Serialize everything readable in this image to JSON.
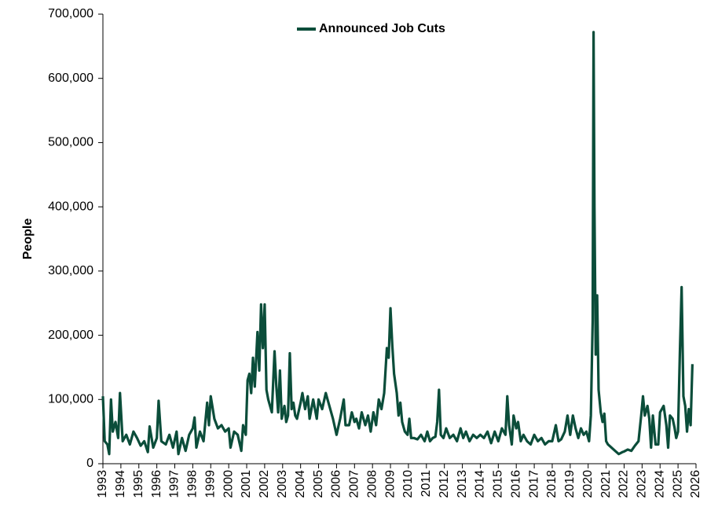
{
  "chart_data": {
    "type": "line",
    "y_label": "People",
    "legend": "top",
    "x": [
      1993.0,
      1993.1,
      1993.25,
      1993.35,
      1993.45,
      1993.55,
      1993.7,
      1993.85,
      1993.95,
      1994.1,
      1994.3,
      1994.5,
      1994.7,
      1994.9,
      1995.1,
      1995.3,
      1995.5,
      1995.6,
      1995.8,
      1996.0,
      1996.1,
      1996.25,
      1996.5,
      1996.7,
      1996.9,
      1997.1,
      1997.2,
      1997.4,
      1997.6,
      1997.8,
      1998.0,
      1998.1,
      1998.2,
      1998.4,
      1998.6,
      1998.8,
      1998.9,
      1999.0,
      1999.2,
      1999.4,
      1999.6,
      1999.8,
      2000.0,
      2000.1,
      2000.3,
      2000.5,
      2000.7,
      2000.8,
      2000.95,
      2001.05,
      2001.15,
      2001.25,
      2001.35,
      2001.45,
      2001.6,
      2001.7,
      2001.8,
      2001.9,
      2002.0,
      2002.1,
      2002.2,
      2002.3,
      2002.4,
      2002.55,
      2002.65,
      2002.75,
      2002.85,
      2002.95,
      2003.1,
      2003.2,
      2003.3,
      2003.4,
      2003.5,
      2003.6,
      2003.7,
      2003.8,
      2004.0,
      2004.1,
      2004.25,
      2004.4,
      2004.5,
      2004.7,
      2004.9,
      2005.0,
      2005.2,
      2005.4,
      2005.6,
      2005.8,
      2006.0,
      2006.2,
      2006.4,
      2006.5,
      2006.7,
      2006.85,
      2007.0,
      2007.1,
      2007.25,
      2007.4,
      2007.6,
      2007.75,
      2007.9,
      2008.05,
      2008.2,
      2008.35,
      2008.5,
      2008.65,
      2008.8,
      2008.9,
      2009.0,
      2009.1,
      2009.2,
      2009.35,
      2009.45,
      2009.55,
      2009.65,
      2009.8,
      2009.95,
      2010.05,
      2010.15,
      2010.3,
      2010.5,
      2010.7,
      2010.9,
      2011.05,
      2011.2,
      2011.35,
      2011.5,
      2011.6,
      2011.7,
      2011.8,
      2011.95,
      2012.1,
      2012.3,
      2012.5,
      2012.7,
      2012.9,
      2013.05,
      2013.2,
      2013.4,
      2013.6,
      2013.8,
      2014.0,
      2014.2,
      2014.4,
      2014.6,
      2014.8,
      2015.0,
      2015.2,
      2015.4,
      2015.5,
      2015.6,
      2015.75,
      2015.85,
      2016.0,
      2016.1,
      2016.25,
      2016.4,
      2016.6,
      2016.8,
      2017.0,
      2017.2,
      2017.4,
      2017.6,
      2017.8,
      2018.0,
      2018.2,
      2018.35,
      2018.5,
      2018.7,
      2018.85,
      2019.0,
      2019.15,
      2019.3,
      2019.45,
      2019.6,
      2019.75,
      2019.9,
      2020.05,
      2020.15,
      2020.25,
      2020.3,
      2020.35,
      2020.42,
      2020.5,
      2020.58,
      2020.7,
      2020.8,
      2020.9,
      2021.0,
      2021.1,
      2021.3,
      2021.5,
      2021.7,
      2021.9,
      2022.0,
      2022.2,
      2022.4,
      2022.6,
      2022.8,
      2022.95,
      2023.05,
      2023.15,
      2023.3,
      2023.4,
      2023.5,
      2023.6,
      2023.75,
      2023.9,
      2024.0,
      2024.1,
      2024.2,
      2024.35,
      2024.45,
      2024.55,
      2024.7,
      2024.8,
      2024.9,
      2025.0,
      2025.1,
      2025.2,
      2025.3,
      2025.4,
      2025.5,
      2025.6,
      2025.7,
      2025.8
    ],
    "series": [
      {
        "name": "Announced Job Cuts",
        "color": "#0b4d3a",
        "values": [
          105000,
          35000,
          30000,
          15000,
          100000,
          50000,
          65000,
          40000,
          110000,
          35000,
          45000,
          30000,
          50000,
          40000,
          28000,
          35000,
          18000,
          58000,
          25000,
          40000,
          98000,
          35000,
          30000,
          45000,
          25000,
          50000,
          15000,
          40000,
          20000,
          45000,
          55000,
          72000,
          25000,
          50000,
          35000,
          95000,
          60000,
          105000,
          70000,
          55000,
          60000,
          50000,
          55000,
          25000,
          50000,
          45000,
          20000,
          60000,
          45000,
          130000,
          140000,
          110000,
          165000,
          120000,
          205000,
          145000,
          248000,
          180000,
          248000,
          115000,
          100000,
          90000,
          80000,
          175000,
          120000,
          80000,
          145000,
          70000,
          90000,
          65000,
          75000,
          172000,
          85000,
          95000,
          75000,
          70000,
          95000,
          110000,
          85000,
          105000,
          70000,
          100000,
          70000,
          100000,
          85000,
          110000,
          90000,
          70000,
          45000,
          70000,
          100000,
          60000,
          60000,
          80000,
          65000,
          70000,
          55000,
          80000,
          60000,
          75000,
          50000,
          80000,
          60000,
          100000,
          85000,
          110000,
          180000,
          165000,
          242000,
          185000,
          140000,
          110000,
          75000,
          95000,
          65000,
          50000,
          45000,
          70000,
          40000,
          40000,
          38000,
          45000,
          35000,
          50000,
          35000,
          40000,
          42000,
          65000,
          115000,
          45000,
          40000,
          55000,
          40000,
          45000,
          35000,
          55000,
          40000,
          50000,
          35000,
          45000,
          40000,
          45000,
          40000,
          50000,
          32000,
          50000,
          35000,
          55000,
          45000,
          105000,
          60000,
          30000,
          75000,
          55000,
          65000,
          35000,
          45000,
          35000,
          30000,
          45000,
          35000,
          40000,
          30000,
          35000,
          35000,
          60000,
          35000,
          38000,
          50000,
          75000,
          45000,
          75000,
          55000,
          40000,
          55000,
          45000,
          50000,
          35000,
          75000,
          222000,
          672000,
          400000,
          170000,
          262000,
          115000,
          80000,
          65000,
          78000,
          35000,
          30000,
          25000,
          20000,
          15000,
          18000,
          19000,
          22000,
          20000,
          28000,
          35000,
          75000,
          105000,
          75000,
          90000,
          70000,
          25000,
          75000,
          30000,
          30000,
          80000,
          85000,
          90000,
          60000,
          25000,
          75000,
          70000,
          57000,
          40000,
          50000,
          170000,
          275000,
          105000,
          90000,
          50000,
          85000,
          60000,
          155000
        ]
      }
    ],
    "xlim": [
      1993,
      2026
    ],
    "xticks": [
      1993,
      1994,
      1995,
      1996,
      1997,
      1998,
      1999,
      2000,
      2001,
      2002,
      2003,
      2004,
      2005,
      2006,
      2007,
      2008,
      2009,
      2010,
      2011,
      2012,
      2013,
      2014,
      2015,
      2016,
      2017,
      2018,
      2019,
      2020,
      2021,
      2022,
      2023,
      2024,
      2025,
      2026
    ],
    "ylim": [
      0,
      700000
    ],
    "yticks": [
      0,
      {
        "value": 100000,
        "label": "100,000"
      },
      {
        "value": 200000,
        "label": "200,000"
      },
      {
        "value": 300000,
        "label": "300,000"
      },
      {
        "value": 400000,
        "label": "400,000"
      },
      {
        "value": 500000,
        "label": "500,000"
      },
      {
        "value": 600000,
        "label": "600,000"
      },
      {
        "value": 700000,
        "label": "700,000"
      }
    ]
  }
}
